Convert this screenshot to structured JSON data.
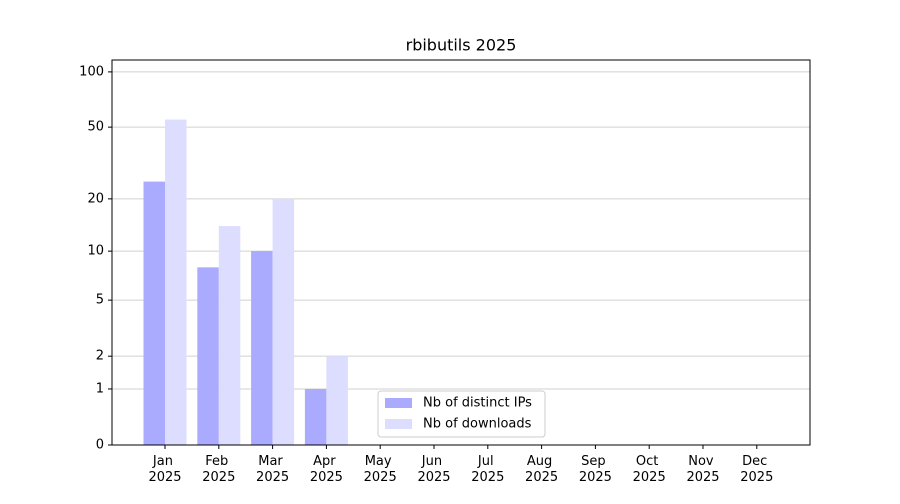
{
  "chart_data": {
    "type": "bar",
    "title": "rbibutils 2025",
    "categories": [
      "Jan 2025",
      "Feb 2025",
      "Mar 2025",
      "Apr 2025",
      "May 2025",
      "Jun 2025",
      "Jul 2025",
      "Aug 2025",
      "Sep 2025",
      "Oct 2025",
      "Nov 2025",
      "Dec 2025"
    ],
    "series": [
      {
        "name": "Nb of distinct IPs",
        "color": "#aaaaff",
        "values": [
          25,
          8,
          10,
          1,
          null,
          null,
          null,
          null,
          null,
          null,
          null,
          null
        ]
      },
      {
        "name": "Nb of downloads",
        "color": "#ddddff",
        "values": [
          55,
          14,
          20,
          2,
          null,
          null,
          null,
          null,
          null,
          null,
          null,
          null
        ]
      }
    ],
    "yscale": "log1p",
    "ylim": [
      0,
      116
    ],
    "yticks": [
      0,
      1,
      2,
      5,
      10,
      20,
      50,
      100
    ],
    "grid": true,
    "legend": "lower center"
  }
}
